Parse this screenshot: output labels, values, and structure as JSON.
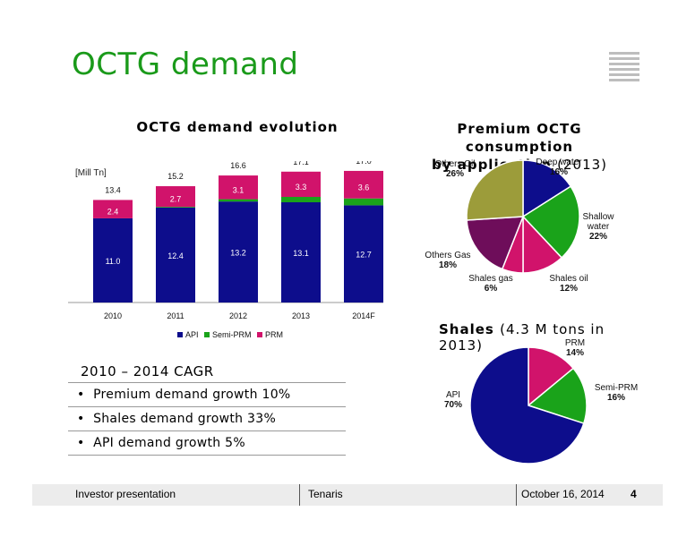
{
  "page": {
    "title": "OCTG demand"
  },
  "bar_chart": {
    "title": "OCTG demand evolution",
    "unit_label": "[Mill Tn]",
    "legend": [
      "API",
      "Semi-PRM",
      "PRM"
    ]
  },
  "premium_pie": {
    "title_bold": "Premium OCTG consumption",
    "title_bold2": "by application",
    "title_year": "(2013)"
  },
  "shales_pie": {
    "title_bold": "Shales",
    "title_rest": "(4.3 M tons in 2013)"
  },
  "cagr": {
    "heading": "2010 – 2014 CAGR",
    "items": [
      "Premium demand growth  10%",
      "Shales demand growth  33%",
      "API demand growth  5%"
    ]
  },
  "footer": {
    "left": "Investor presentation",
    "center": "Tenaris",
    "date": "October 16, 2014",
    "page_number": "4"
  },
  "colors": {
    "api": "#0d0d8c",
    "semi_prm": "#1aa31a",
    "prm": "#d1136b",
    "title_green": "#1a9a1a",
    "others_oil": "#9c9c3a",
    "others_gas": "#6e0d5a",
    "shales_gas": "#d1136b"
  },
  "chart_data": [
    {
      "type": "bar",
      "stacked": true,
      "title": "OCTG demand evolution",
      "unit": "[Mill Tn]",
      "categories": [
        "2010",
        "2011",
        "2012",
        "2013",
        "2014F"
      ],
      "series": [
        {
          "name": "API",
          "values": [
            11.0,
            12.4,
            13.2,
            13.1,
            12.7
          ],
          "color": "#0d0d8c"
        },
        {
          "name": "Semi-PRM",
          "values": [
            0,
            0.1,
            0.3,
            0.7,
            0.9
          ],
          "color": "#1aa31a"
        },
        {
          "name": "PRM",
          "values": [
            2.4,
            2.7,
            3.1,
            3.3,
            3.6
          ],
          "color": "#d1136b"
        }
      ],
      "value_labels": [
        [
          "11.0",
          "",
          "2.4"
        ],
        [
          "12.4",
          "0.1",
          "2.7"
        ],
        [
          "13.2",
          "0.3",
          "3.1"
        ],
        [
          "13.1",
          "0.7",
          "3.3"
        ],
        [
          "12.7",
          "0.9",
          "3.6"
        ]
      ],
      "totals": [
        "13.4",
        "15.2",
        "16.6",
        "17.1",
        "17.0"
      ],
      "ylim": [
        0,
        18
      ],
      "legend_position": "bottom"
    },
    {
      "type": "pie",
      "title": "Premium OCTG consumption by application (2013)",
      "slices": [
        {
          "label": "Deep water",
          "label_lines": [
            "Deep water"
          ],
          "pct": "16%",
          "value": 16,
          "color": "#0d0d8c"
        },
        {
          "label": "Shallow water",
          "label_lines": [
            "Shallow",
            "water"
          ],
          "pct": "22%",
          "value": 22,
          "color": "#1aa31a"
        },
        {
          "label": "Shales oil",
          "label_lines": [
            "Shales oil"
          ],
          "pct": "12%",
          "value": 12,
          "color": "#d1136b"
        },
        {
          "label": "Shales gas",
          "label_lines": [
            "Shales gas"
          ],
          "pct": "6%",
          "value": 6,
          "color": "#d1136b"
        },
        {
          "label": "Others Gas",
          "label_lines": [
            "Others Gas"
          ],
          "pct": "18%",
          "value": 18,
          "color": "#6e0d5a"
        },
        {
          "label": "Others Oil",
          "label_lines": [
            "Others Oil"
          ],
          "pct": "26%",
          "value": 26,
          "color": "#9c9c3a"
        }
      ]
    },
    {
      "type": "pie",
      "title": "Shales (4.3 M tons in 2013)",
      "slices": [
        {
          "label": "PRM",
          "pct": "14%",
          "value": 14,
          "color": "#d1136b"
        },
        {
          "label": "Semi-PRM",
          "pct": "16%",
          "value": 16,
          "color": "#1aa31a"
        },
        {
          "label": "API",
          "pct": "70%",
          "value": 70,
          "color": "#0d0d8c"
        }
      ]
    }
  ]
}
